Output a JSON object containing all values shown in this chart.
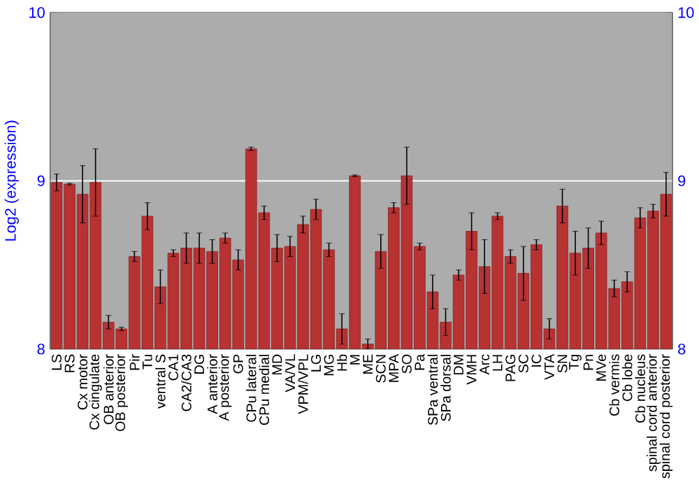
{
  "chart_data": {
    "type": "bar",
    "ylabel": "Log2 (expression)",
    "categories": [
      "LS",
      "RS",
      "Cx motor",
      "Cx cingulate",
      "OB anterior",
      "OB posterior",
      "Pir",
      "Tu",
      "ventral S",
      "CA1",
      "CA2/CA3",
      "DG",
      "A anterior",
      "A posterior",
      "GP",
      "CPu lateral",
      "CPu medial",
      "MD",
      "VA/VL",
      "VPM/VPL",
      "LG",
      "MG",
      "Hb",
      "M",
      "ME",
      "SCN",
      "MPA",
      "SO",
      "Pa",
      "SPa ventral",
      "SPa dorsal",
      "DM",
      "VMH",
      "Arc",
      "LH",
      "PAG",
      "SC",
      "IC",
      "VTA",
      "SN",
      "Tg",
      "Pn",
      "MVe",
      "Cb vermis",
      "Cb lobe",
      "Cb nucleus",
      "spinal cord anterior",
      "spinal cord posterior"
    ],
    "values": [
      8.99,
      8.98,
      8.92,
      8.99,
      8.16,
      8.12,
      8.55,
      8.79,
      8.37,
      8.57,
      8.6,
      8.6,
      8.58,
      8.66,
      8.53,
      9.19,
      8.81,
      8.6,
      8.61,
      8.74,
      8.83,
      8.59,
      8.12,
      9.03,
      8.03,
      8.58,
      8.84,
      9.03,
      8.61,
      8.34,
      8.16,
      8.44,
      8.7,
      8.49,
      8.79,
      8.55,
      8.45,
      8.62,
      8.12,
      8.85,
      8.57,
      8.6,
      8.69,
      8.36,
      8.4,
      8.78,
      8.82,
      8.92
    ],
    "errors": [
      0.05,
      0.005,
      0.17,
      0.2,
      0.04,
      0.01,
      0.03,
      0.08,
      0.1,
      0.02,
      0.09,
      0.09,
      0.07,
      0.03,
      0.06,
      0.01,
      0.04,
      0.08,
      0.06,
      0.05,
      0.06,
      0.04,
      0.09,
      0.005,
      0.03,
      0.1,
      0.03,
      0.17,
      0.02,
      0.1,
      0.08,
      0.03,
      0.11,
      0.16,
      0.02,
      0.04,
      0.16,
      0.03,
      0.06,
      0.1,
      0.13,
      0.12,
      0.07,
      0.05,
      0.06,
      0.06,
      0.04,
      0.13
    ],
    "color": "#b83232",
    "ylim": [
      8,
      10
    ],
    "yticks": [
      8,
      9,
      10
    ],
    "y2lim": [
      8,
      10
    ],
    "y2ticks": [
      8,
      9,
      10
    ],
    "grid": "y"
  }
}
